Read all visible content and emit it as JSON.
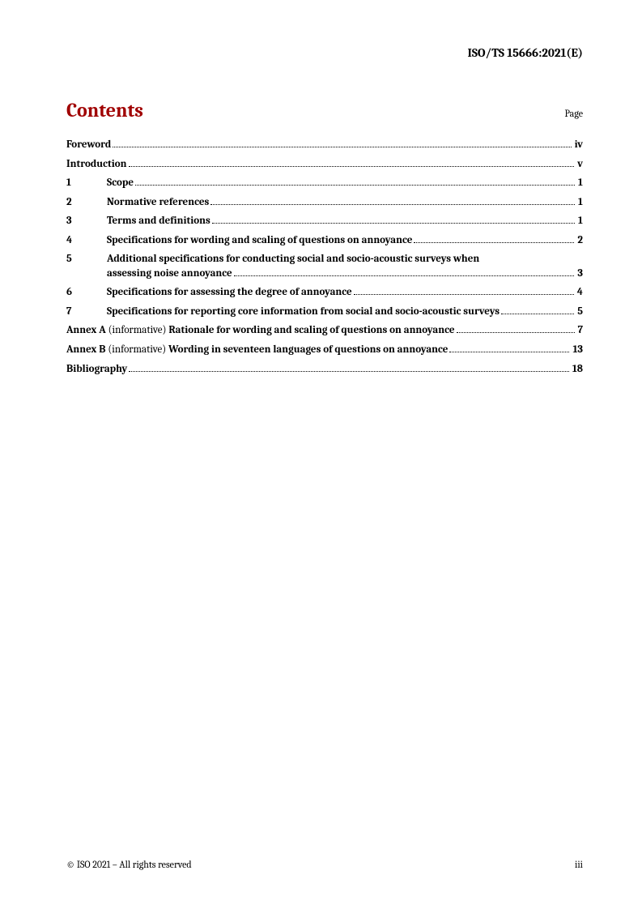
{
  "header": "ISO/TS 15666:2021(E)",
  "contents_title": "Contents",
  "page_label": "Page",
  "toc": [
    {
      "num": "",
      "label_bold": "Foreword",
      "label_normal": "",
      "page": "iv",
      "fullwidth": true
    },
    {
      "num": "",
      "label_bold": "Introduction",
      "label_normal": "",
      "page": "v",
      "fullwidth": true
    },
    {
      "num": "1",
      "label_bold": "Scope",
      "label_normal": "",
      "page": "1",
      "fullwidth": false
    },
    {
      "num": "2",
      "label_bold": "Normative references",
      "label_normal": "",
      "page": "1",
      "fullwidth": false
    },
    {
      "num": "3",
      "label_bold": "Terms and definitions",
      "label_normal": "",
      "page": "1",
      "fullwidth": false
    },
    {
      "num": "4",
      "label_bold": "Specifications for wording and scaling of questions on annoyance",
      "label_normal": "",
      "page": "2",
      "fullwidth": false
    },
    {
      "num": "5",
      "label_bold_line1": "Additional specifications for conducting social and socio-acoustic surveys when",
      "label_bold_line2": "assessing noise annoyance",
      "page": "3",
      "fullwidth": false,
      "multiline": true
    },
    {
      "num": "6",
      "label_bold": "Specifications for assessing the degree of annoyance",
      "label_normal": "",
      "page": "4",
      "fullwidth": false
    },
    {
      "num": "7",
      "label_bold": "Specifications for reporting core information from social and socio-acoustic surveys",
      "label_normal": "",
      "page": "5",
      "fullwidth": false
    },
    {
      "num": "",
      "prefix_bold": "Annex A",
      "mid_normal": " (informative) ",
      "suffix_bold": "Rationale for wording and scaling of questions on annoyance",
      "page": "7",
      "fullwidth": true,
      "annex": true
    },
    {
      "num": "",
      "prefix_bold": "Annex B",
      "mid_normal": " (informative) ",
      "suffix_bold": "Wording in seventeen languages of questions on annoyance",
      "page": "13",
      "fullwidth": true,
      "annex": true
    },
    {
      "num": "",
      "label_bold": "Bibliography",
      "label_normal": "",
      "page": "18",
      "fullwidth": true
    }
  ],
  "footer_left": "© ISO 2021 – All rights reserved",
  "footer_right": "iii"
}
